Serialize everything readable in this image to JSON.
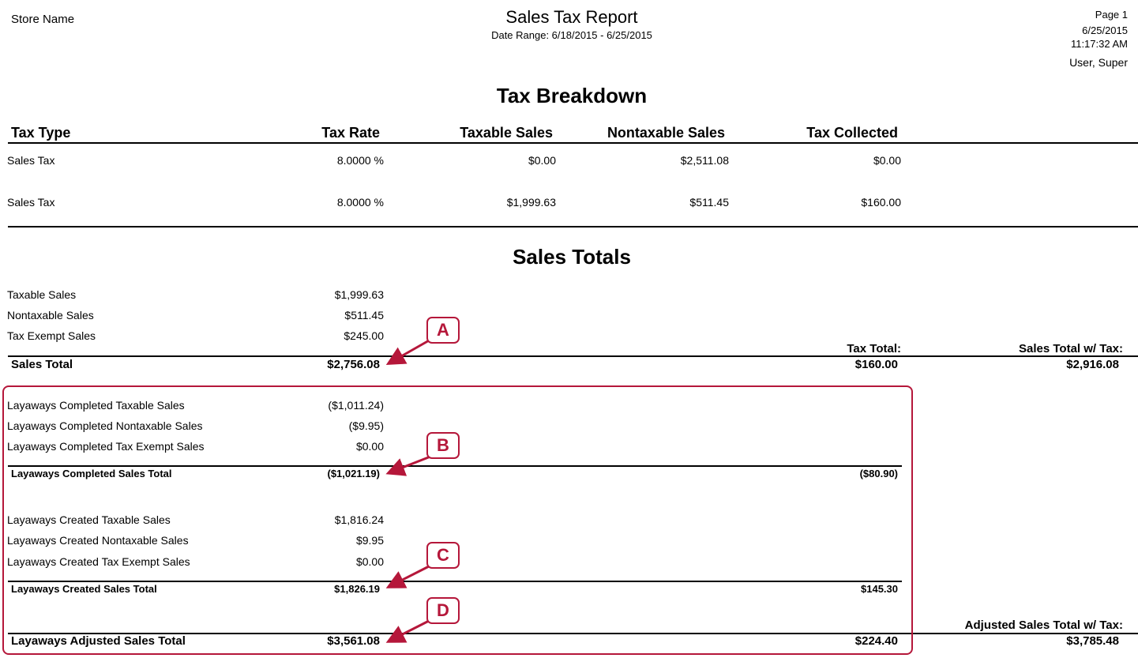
{
  "header": {
    "store_name": "Store Name",
    "title": "Sales Tax Report",
    "date_range": "Date Range: 6/18/2015 - 6/25/2015",
    "page": "Page 1",
    "date": "6/25/2015",
    "time": "11:17:32 AM",
    "user": "User, Super"
  },
  "tax_breakdown": {
    "heading": "Tax Breakdown",
    "columns": {
      "tax_type": "Tax Type",
      "tax_rate": "Tax Rate",
      "taxable_sales": "Taxable Sales",
      "nontaxable_sales": "Nontaxable Sales",
      "tax_collected": "Tax Collected"
    },
    "rows": [
      {
        "type": "Sales Tax",
        "rate": "8.0000 %",
        "taxable": "$0.00",
        "nontaxable": "$2,511.08",
        "collected": "$0.00"
      },
      {
        "type": "Sales Tax",
        "rate": "8.0000 %",
        "taxable": "$1,999.63",
        "nontaxable": "$511.45",
        "collected": "$160.00"
      }
    ]
  },
  "sales_totals": {
    "heading": "Sales Totals",
    "lines": [
      {
        "label": "Taxable Sales",
        "value": "$1,999.63"
      },
      {
        "label": "Nontaxable Sales",
        "value": "$511.45"
      },
      {
        "label": "Tax Exempt Sales",
        "value": "$245.00"
      }
    ],
    "tax_total_label": "Tax Total:",
    "sales_total_tax_label": "Sales Total w/ Tax:",
    "sales_total_label": "Sales Total",
    "sales_total_value": "$2,756.08",
    "tax_total_value": "$160.00",
    "sales_total_tax_value": "$2,916.08"
  },
  "layaways_completed": {
    "lines": [
      {
        "label": "Layaways Completed Taxable Sales",
        "value": "($1,011.24)"
      },
      {
        "label": "Layaways Completed Nontaxable Sales",
        "value": "($9.95)"
      },
      {
        "label": "Layaways Completed Tax Exempt Sales",
        "value": "$0.00"
      }
    ],
    "total_label": "Layaways Completed Sales Total",
    "total_value": "($1,021.19)",
    "tax_value": "($80.90)"
  },
  "layaways_created": {
    "lines": [
      {
        "label": "Layaways Created Taxable Sales",
        "value": "$1,816.24"
      },
      {
        "label": "Layaways Created Nontaxable Sales",
        "value": "$9.95"
      },
      {
        "label": "Layaways Created Tax Exempt Sales",
        "value": "$0.00"
      }
    ],
    "total_label": "Layaways Created Sales Total",
    "total_value": "$1,826.19",
    "tax_value": "$145.30"
  },
  "layaways_adjusted": {
    "adjusted_label": "Adjusted Sales Total w/ Tax:",
    "total_label": "Layaways Adjusted Sales Total",
    "total_value": "$3,561.08",
    "tax_value": "$224.40",
    "adjusted_value": "$3,785.48"
  },
  "callouts": {
    "a": "A",
    "b": "B",
    "c": "C",
    "d": "D",
    "color": "#b5173a"
  }
}
